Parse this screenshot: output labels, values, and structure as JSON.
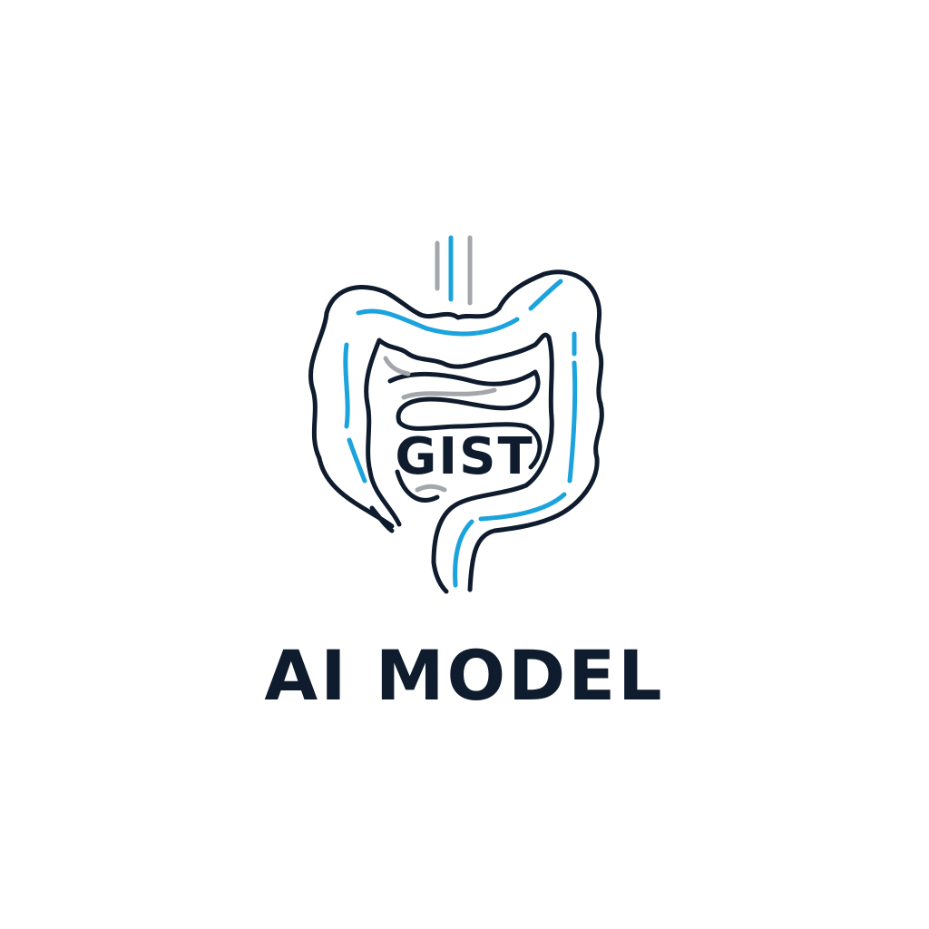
{
  "logo": {
    "icon": "intestine-icon",
    "inner_label": "GIST",
    "wordmark": "AI MODEL",
    "colors": {
      "outline": "#0f1c2e",
      "accent": "#1ba3dd",
      "gray": "#a3a6aa",
      "background": "#ffffff"
    }
  }
}
